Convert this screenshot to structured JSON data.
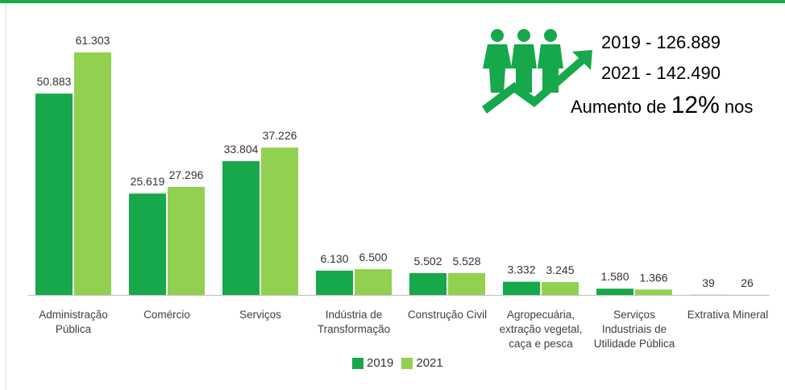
{
  "chart_data": {
    "type": "bar",
    "categories": [
      "Administração Pública",
      "Comércio",
      "Serviços",
      "Indústria de Transformação",
      "Construção Civil",
      "Agropecuária, extração vegetal, caça e pesca",
      "Serviços Industriais de Utilidade Pública",
      "Extrativa Mineral"
    ],
    "series": [
      {
        "name": "2019",
        "color": "#16a84a",
        "values": [
          50883,
          25619,
          33804,
          6130,
          5502,
          3332,
          1580,
          39
        ],
        "value_labels": [
          "50.883",
          "25.619",
          "33.804",
          "6.130",
          "5.502",
          "3.332",
          "1.580",
          "39"
        ]
      },
      {
        "name": "2021",
        "color": "#92d050",
        "values": [
          61303,
          27296,
          37226,
          6500,
          5528,
          3245,
          1366,
          26
        ],
        "value_labels": [
          "61.303",
          "27.296",
          "37.226",
          "6.500",
          "5.528",
          "3.245",
          "1.366",
          "26"
        ]
      }
    ],
    "legend": "bottom",
    "annotation": {
      "line1": "2019 - 126.889",
      "line2": "2021 - 142.490",
      "line3_start": "Aumento de ",
      "line3_big": "12%",
      "line3_end": " nos"
    }
  }
}
